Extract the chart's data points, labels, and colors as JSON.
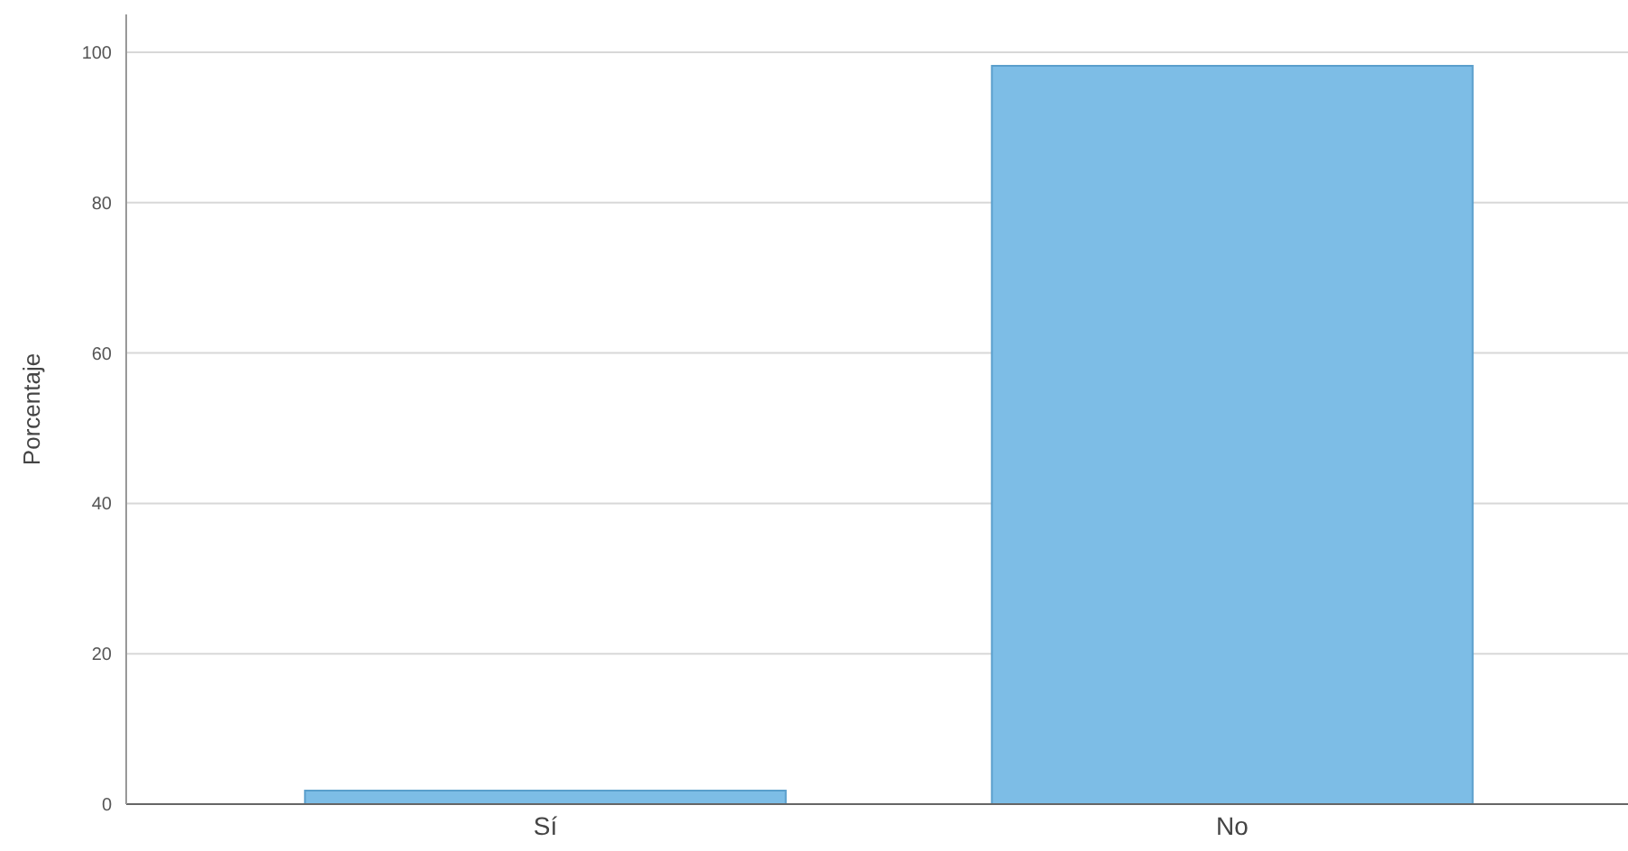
{
  "chart_data": {
    "type": "bar",
    "ylabel": "Porcentaje",
    "categories": [
      "Sí",
      "No"
    ],
    "values": [
      1.8,
      98.2
    ],
    "color": "#7dbde6",
    "ylim": [
      0,
      100
    ],
    "yticks": [
      0,
      20,
      40,
      60,
      80,
      100
    ],
    "grid": "y"
  }
}
